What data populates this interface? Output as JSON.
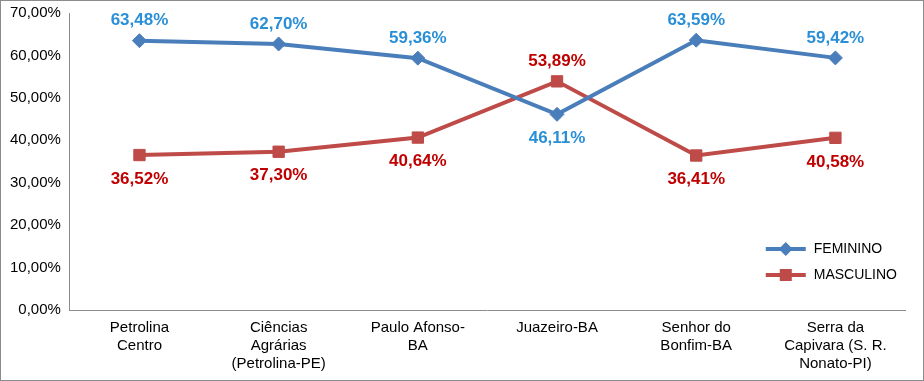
{
  "chart_data": {
    "type": "line",
    "categories": [
      [
        "Petrolina",
        "Centro"
      ],
      [
        "Ciências",
        "Agrárias",
        "(Petrolina-PE)"
      ],
      [
        "Paulo Afonso-",
        "BA"
      ],
      [
        "Juazeiro-BA"
      ],
      [
        "Senhor do",
        "Bonfim-BA"
      ],
      [
        "Serra da",
        "Capivara (S. R.",
        "Nonato-PI)"
      ]
    ],
    "series": [
      {
        "name": "FEMININO",
        "color": "#4a7ebb",
        "marker": "diamond",
        "values": [
          63.48,
          62.7,
          59.36,
          46.11,
          63.59,
          59.42
        ],
        "value_labels": [
          "63,48%",
          "62,70%",
          "59,36%",
          "46,11%",
          "63,59%",
          "59,42%"
        ]
      },
      {
        "name": "MASCULINO",
        "color": "#be4b48",
        "marker": "square",
        "values": [
          36.52,
          37.3,
          40.64,
          53.89,
          36.41,
          40.58
        ],
        "value_labels": [
          "36,52%",
          "37,30%",
          "40,64%",
          "53,89%",
          "36,41%",
          "40,58%"
        ]
      }
    ],
    "ylim": [
      0,
      70
    ],
    "yticks": [
      {
        "value": 0,
        "label": "0,00%"
      },
      {
        "value": 10,
        "label": "10,00%"
      },
      {
        "value": 20,
        "label": "20,00%"
      },
      {
        "value": 30,
        "label": "30,00%"
      },
      {
        "value": 40,
        "label": "40,00%"
      },
      {
        "value": 50,
        "label": "50,00%"
      },
      {
        "value": 60,
        "label": "60,00%"
      },
      {
        "value": 70,
        "label": "70,00%"
      }
    ],
    "grid": false,
    "legend": "lower right",
    "data_labels": true
  }
}
